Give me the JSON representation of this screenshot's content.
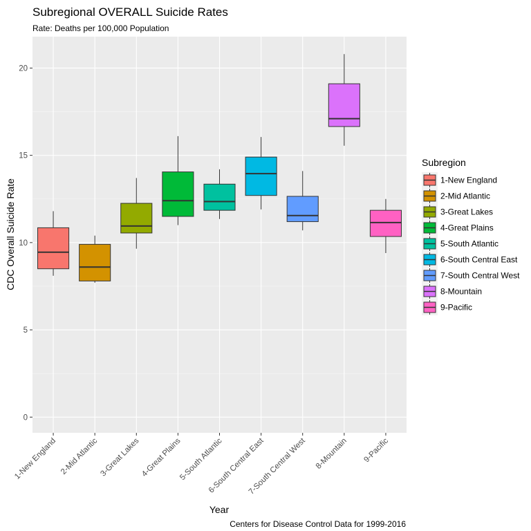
{
  "chart_data": {
    "type": "boxplot",
    "title": "Subregional OVERALL Suicide Rates",
    "subtitle": "Rate: Deaths per 100,000 Population",
    "xlabel": "Year",
    "ylabel": "CDC Overall Suicide Rate",
    "caption": "Centers for Disease Control Data for 1999-2016",
    "ylim": [
      -0.9,
      21.8
    ],
    "yticks": [
      0,
      5,
      10,
      15,
      20
    ],
    "grid": true,
    "legend": {
      "title": "Subregion",
      "placement": "right"
    },
    "categories": [
      "1-New England",
      "2-Mid Atlantic",
      "3-Great Lakes",
      "4-Great Plains",
      "5-South Atlantic",
      "6-South Central East",
      "7-South Central West",
      "8-Mountain",
      "9-Pacific"
    ],
    "colors": [
      "#F8766D",
      "#D39200",
      "#93AA00",
      "#00BA38",
      "#00C19F",
      "#00B9E3",
      "#619CFF",
      "#DB72FB",
      "#FF61C3"
    ],
    "boxes": [
      {
        "min": 8.1,
        "q1": 8.5,
        "median": 9.45,
        "q3": 10.85,
        "max": 11.8
      },
      {
        "min": 7.7,
        "q1": 7.8,
        "median": 8.6,
        "q3": 9.9,
        "max": 10.4
      },
      {
        "min": 9.65,
        "q1": 10.55,
        "median": 10.95,
        "q3": 12.25,
        "max": 13.7
      },
      {
        "min": 11.0,
        "q1": 11.5,
        "median": 12.4,
        "q3": 14.05,
        "max": 16.1
      },
      {
        "min": 11.35,
        "q1": 11.85,
        "median": 12.35,
        "q3": 13.35,
        "max": 14.2
      },
      {
        "min": 11.9,
        "q1": 12.7,
        "median": 13.95,
        "q3": 14.9,
        "max": 16.05
      },
      {
        "min": 10.7,
        "q1": 11.2,
        "median": 11.55,
        "q3": 12.65,
        "max": 14.1
      },
      {
        "min": 15.55,
        "q1": 16.65,
        "median": 17.1,
        "q3": 19.1,
        "max": 20.8
      },
      {
        "min": 9.4,
        "q1": 10.35,
        "median": 11.15,
        "q3": 11.85,
        "max": 12.5
      }
    ]
  }
}
